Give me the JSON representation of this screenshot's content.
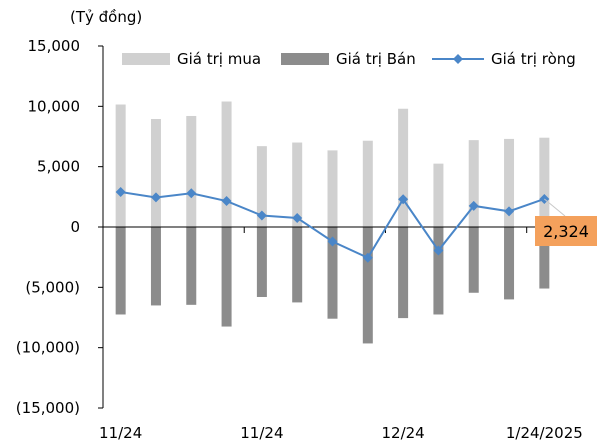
{
  "chart_data": {
    "type": "bar",
    "unit_label": "(Tỷ đồng)",
    "title": "",
    "xlabel": "",
    "ylabel": "",
    "ylim": [
      -15000,
      15000
    ],
    "yticks": [
      15000,
      10000,
      5000,
      0,
      -5000,
      -10000,
      -15000
    ],
    "ytick_labels": [
      "15,000",
      "10,000",
      "5,000",
      "0",
      "(5,000)",
      "(10,000)",
      "(15,000)"
    ],
    "xtick_labels": [
      "11/24",
      "11/24",
      "12/24",
      "1/24/2025"
    ],
    "xtick_positions": [
      0,
      4,
      8,
      12
    ],
    "grid": false,
    "legend_position": "top",
    "categories": [
      "1",
      "2",
      "3",
      "4",
      "5",
      "6",
      "7",
      "8",
      "9",
      "10",
      "11",
      "12",
      "13"
    ],
    "series": [
      {
        "name": "Giá trị mua",
        "kind": "bar",
        "color": "#d0d0d0",
        "values": [
          10150,
          8950,
          9200,
          10400,
          6700,
          7000,
          6350,
          7150,
          9800,
          5250,
          7200,
          7300,
          7400
        ]
      },
      {
        "name": "Giá trị Bán",
        "kind": "bar",
        "color": "#8c8c8c",
        "values": [
          -7250,
          -6500,
          -6450,
          -8250,
          -5800,
          -6250,
          -7600,
          -9650,
          -7550,
          -7250,
          -5450,
          -6000,
          -5100
        ]
      },
      {
        "name": "Giá trị ròng",
        "kind": "line",
        "color": "#4a86c8",
        "values": [
          2900,
          2450,
          2800,
          2150,
          950,
          750,
          -1200,
          -2550,
          2300,
          -1950,
          1750,
          1300,
          2324
        ]
      }
    ],
    "annotation": {
      "text": "2,324",
      "series": "Giá trị ròng",
      "index": 12,
      "color": "#f4a15c"
    }
  }
}
